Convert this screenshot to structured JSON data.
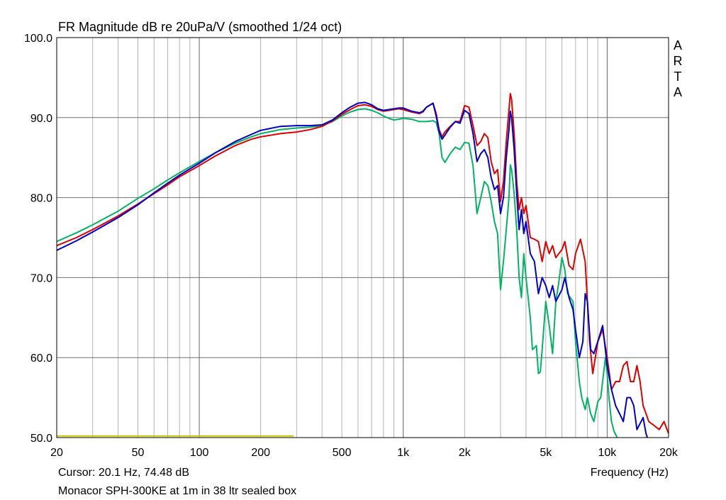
{
  "chart_data": {
    "type": "line",
    "title": "FR Magnitude dB re 20uPa/V (smoothed 1/24 oct)",
    "xlabel": "Frequency (Hz)",
    "ylabel": "",
    "x_scale": "log",
    "xlim": [
      20,
      20000
    ],
    "ylim": [
      50,
      100
    ],
    "grid": true,
    "y_ticks": [
      "100.0",
      "90.0",
      "80.0",
      "70.0",
      "60.0",
      "50.0"
    ],
    "x_ticks": [
      {
        "value": 20,
        "label": "20"
      },
      {
        "value": 50,
        "label": "50"
      },
      {
        "value": 100,
        "label": "100"
      },
      {
        "value": 200,
        "label": "200"
      },
      {
        "value": 500,
        "label": "500"
      },
      {
        "value": 1000,
        "label": "1k"
      },
      {
        "value": 2000,
        "label": "2k"
      },
      {
        "value": 5000,
        "label": "5k"
      },
      {
        "value": 10000,
        "label": "10k"
      },
      {
        "value": 20000,
        "label": "20k"
      }
    ],
    "side_label": [
      "A",
      "R",
      "T",
      "A"
    ],
    "cursor_text": "Cursor: 20.1 Hz, 74.48 dB",
    "caption": "Monacor SPH-300KE at 1m in 38 ltr sealed box",
    "reference_line": {
      "color": "#c8c800",
      "x": [
        20,
        290
      ],
      "y": 50.2
    },
    "series": [
      {
        "color": "#00b464",
        "points": [
          [
            20,
            74.5
          ],
          [
            25,
            75.6
          ],
          [
            30,
            76.6
          ],
          [
            40,
            78.3
          ],
          [
            50,
            79.9
          ],
          [
            60,
            81.1
          ],
          [
            70,
            82.2
          ],
          [
            80,
            83.1
          ],
          [
            100,
            84.5
          ],
          [
            120,
            85.6
          ],
          [
            150,
            86.8
          ],
          [
            180,
            87.6
          ],
          [
            200,
            88.0
          ],
          [
            250,
            88.5
          ],
          [
            300,
            88.7
          ],
          [
            350,
            88.8
          ],
          [
            400,
            89.0
          ],
          [
            450,
            89.5
          ],
          [
            500,
            90.2
          ],
          [
            550,
            90.7
          ],
          [
            600,
            91.0
          ],
          [
            650,
            91.1
          ],
          [
            700,
            90.9
          ],
          [
            750,
            90.6
          ],
          [
            800,
            90.2
          ],
          [
            850,
            89.9
          ],
          [
            900,
            89.7
          ],
          [
            950,
            89.8
          ],
          [
            1000,
            89.9
          ],
          [
            1100,
            89.8
          ],
          [
            1200,
            89.5
          ],
          [
            1300,
            89.5
          ],
          [
            1400,
            89.6
          ],
          [
            1450,
            89.4
          ],
          [
            1500,
            88.0
          ],
          [
            1550,
            85.0
          ],
          [
            1600,
            84.4
          ],
          [
            1700,
            85.5
          ],
          [
            1800,
            86.3
          ],
          [
            1900,
            86.0
          ],
          [
            2000,
            86.9
          ],
          [
            2100,
            86.8
          ],
          [
            2200,
            84.0
          ],
          [
            2300,
            78.0
          ],
          [
            2400,
            80.0
          ],
          [
            2500,
            82.0
          ],
          [
            2600,
            81.5
          ],
          [
            2700,
            79.5
          ],
          [
            2800,
            77.0
          ],
          [
            2900,
            75.5
          ],
          [
            3000,
            68.5
          ],
          [
            3100,
            72.0
          ],
          [
            3200,
            76.0
          ],
          [
            3300,
            80.0
          ],
          [
            3350,
            84.1
          ],
          [
            3400,
            83.5
          ],
          [
            3500,
            80.5
          ],
          [
            3600,
            76.0
          ],
          [
            3700,
            70.0
          ],
          [
            3800,
            67.5
          ],
          [
            3900,
            73.0
          ],
          [
            4000,
            70.0
          ],
          [
            4200,
            65.0
          ],
          [
            4300,
            61.0
          ],
          [
            4500,
            61.5
          ],
          [
            4600,
            58.0
          ],
          [
            4700,
            58.2
          ],
          [
            4800,
            61.0
          ],
          [
            5000,
            67.0
          ],
          [
            5200,
            64.0
          ],
          [
            5400,
            60.5
          ],
          [
            5600,
            67.0
          ],
          [
            5800,
            69.5
          ],
          [
            6000,
            72.5
          ],
          [
            6200,
            71.0
          ],
          [
            6400,
            68.0
          ],
          [
            6800,
            67.0
          ],
          [
            7000,
            62.0
          ],
          [
            7300,
            57.0
          ],
          [
            7500,
            55.0
          ],
          [
            7800,
            53.5
          ],
          [
            8000,
            55.0
          ],
          [
            8300,
            53.0
          ],
          [
            8600,
            52.0
          ],
          [
            9000,
            54.5
          ],
          [
            9300,
            55.0
          ],
          [
            9600,
            58.0
          ],
          [
            9800,
            60.0
          ],
          [
            10000,
            58.0
          ],
          [
            10200,
            55.0
          ],
          [
            10500,
            52.0
          ],
          [
            10800,
            50.8
          ],
          [
            11200,
            50.0
          ],
          [
            12000,
            49.5
          ],
          [
            14000,
            49.8
          ],
          [
            15500,
            50.0
          ]
        ]
      },
      {
        "color": "#e00000",
        "points": [
          [
            20,
            74.0
          ],
          [
            25,
            75.0
          ],
          [
            30,
            76.0
          ],
          [
            40,
            77.7
          ],
          [
            50,
            79.2
          ],
          [
            60,
            80.5
          ],
          [
            70,
            81.6
          ],
          [
            80,
            82.6
          ],
          [
            100,
            84.0
          ],
          [
            120,
            85.2
          ],
          [
            150,
            86.5
          ],
          [
            180,
            87.3
          ],
          [
            200,
            87.6
          ],
          [
            250,
            88.0
          ],
          [
            300,
            88.2
          ],
          [
            350,
            88.5
          ],
          [
            400,
            88.9
          ],
          [
            450,
            89.6
          ],
          [
            500,
            90.4
          ],
          [
            550,
            91.0
          ],
          [
            600,
            91.5
          ],
          [
            650,
            91.6
          ],
          [
            700,
            91.4
          ],
          [
            750,
            91.0
          ],
          [
            800,
            90.8
          ],
          [
            850,
            90.9
          ],
          [
            900,
            91.0
          ],
          [
            950,
            91.1
          ],
          [
            1000,
            91.0
          ],
          [
            1100,
            90.7
          ],
          [
            1200,
            90.5
          ],
          [
            1250,
            90.7
          ],
          [
            1300,
            91.3
          ],
          [
            1400,
            91.8
          ],
          [
            1450,
            90.5
          ],
          [
            1500,
            88.5
          ],
          [
            1550,
            87.6
          ],
          [
            1600,
            88.2
          ],
          [
            1700,
            88.9
          ],
          [
            1800,
            89.5
          ],
          [
            1900,
            89.5
          ],
          [
            2000,
            91.5
          ],
          [
            2100,
            91.3
          ],
          [
            2200,
            89.0
          ],
          [
            2300,
            86.5
          ],
          [
            2400,
            87.0
          ],
          [
            2500,
            88.0
          ],
          [
            2600,
            87.5
          ],
          [
            2700,
            84.5
          ],
          [
            2800,
            83.0
          ],
          [
            2900,
            83.5
          ],
          [
            3000,
            79.5
          ],
          [
            3100,
            82.0
          ],
          [
            3200,
            87.0
          ],
          [
            3300,
            91.0
          ],
          [
            3350,
            93.0
          ],
          [
            3400,
            92.3
          ],
          [
            3500,
            88.0
          ],
          [
            3600,
            82.0
          ],
          [
            3700,
            78.5
          ],
          [
            3800,
            80.0
          ],
          [
            3900,
            78.0
          ],
          [
            4000,
            79.0
          ],
          [
            4200,
            75.0
          ],
          [
            4400,
            74.8
          ],
          [
            4600,
            74.5
          ],
          [
            4800,
            72.0
          ],
          [
            5000,
            74.5
          ],
          [
            5200,
            73.0
          ],
          [
            5400,
            74.0
          ],
          [
            5600,
            72.5
          ],
          [
            6000,
            73.5
          ],
          [
            6200,
            74.5
          ],
          [
            6500,
            71.5
          ],
          [
            6800,
            71.0
          ],
          [
            7000,
            73.0
          ],
          [
            7400,
            74.8
          ],
          [
            7800,
            72.0
          ],
          [
            8200,
            62.0
          ],
          [
            8500,
            58.0
          ],
          [
            9000,
            62.0
          ],
          [
            9500,
            63.5
          ],
          [
            10000,
            60.0
          ],
          [
            10500,
            56.0
          ],
          [
            11000,
            57.0
          ],
          [
            11500,
            57.0
          ],
          [
            12000,
            59.0
          ],
          [
            12500,
            59.5
          ],
          [
            13000,
            57.0
          ],
          [
            13500,
            57.0
          ],
          [
            14000,
            59.0
          ],
          [
            14500,
            57.0
          ],
          [
            15000,
            54.0
          ],
          [
            15500,
            53.0
          ],
          [
            16000,
            52.0
          ],
          [
            17000,
            51.5
          ],
          [
            18000,
            51.0
          ],
          [
            19000,
            52.0
          ],
          [
            20000,
            50.5
          ]
        ]
      },
      {
        "color": "#0000cc",
        "points": [
          [
            20,
            73.4
          ],
          [
            25,
            74.6
          ],
          [
            30,
            75.7
          ],
          [
            40,
            77.5
          ],
          [
            50,
            79.1
          ],
          [
            60,
            80.6
          ],
          [
            70,
            81.8
          ],
          [
            80,
            82.8
          ],
          [
            100,
            84.3
          ],
          [
            120,
            85.6
          ],
          [
            150,
            87.0
          ],
          [
            180,
            87.9
          ],
          [
            200,
            88.4
          ],
          [
            250,
            88.9
          ],
          [
            300,
            89.0
          ],
          [
            350,
            89.0
          ],
          [
            400,
            89.1
          ],
          [
            450,
            89.7
          ],
          [
            500,
            90.6
          ],
          [
            550,
            91.3
          ],
          [
            600,
            91.8
          ],
          [
            650,
            91.9
          ],
          [
            700,
            91.6
          ],
          [
            750,
            91.1
          ],
          [
            800,
            90.9
          ],
          [
            850,
            91.0
          ],
          [
            900,
            91.1
          ],
          [
            950,
            91.2
          ],
          [
            1000,
            91.2
          ],
          [
            1100,
            90.8
          ],
          [
            1200,
            90.6
          ],
          [
            1250,
            90.8
          ],
          [
            1300,
            91.3
          ],
          [
            1400,
            91.8
          ],
          [
            1450,
            90.2
          ],
          [
            1500,
            88.2
          ],
          [
            1550,
            87.3
          ],
          [
            1600,
            87.8
          ],
          [
            1700,
            88.8
          ],
          [
            1800,
            89.5
          ],
          [
            1900,
            89.3
          ],
          [
            2000,
            90.9
          ],
          [
            2100,
            90.5
          ],
          [
            2200,
            88.0
          ],
          [
            2300,
            84.5
          ],
          [
            2400,
            85.5
          ],
          [
            2500,
            86.0
          ],
          [
            2600,
            85.0
          ],
          [
            2700,
            82.5
          ],
          [
            2800,
            81.0
          ],
          [
            2900,
            81.5
          ],
          [
            3000,
            78.0
          ],
          [
            3100,
            80.0
          ],
          [
            3200,
            85.0
          ],
          [
            3300,
            88.5
          ],
          [
            3350,
            90.8
          ],
          [
            3400,
            90.0
          ],
          [
            3500,
            86.0
          ],
          [
            3600,
            80.5
          ],
          [
            3700,
            76.0
          ],
          [
            3800,
            78.5
          ],
          [
            3900,
            75.5
          ],
          [
            4000,
            77.0
          ],
          [
            4200,
            73.0
          ],
          [
            4400,
            72.0
          ],
          [
            4600,
            68.0
          ],
          [
            4800,
            70.0
          ],
          [
            5000,
            69.0
          ],
          [
            5200,
            67.5
          ],
          [
            5400,
            69.0
          ],
          [
            5600,
            67.0
          ],
          [
            6000,
            68.5
          ],
          [
            6200,
            70.0
          ],
          [
            6500,
            67.5
          ],
          [
            6800,
            66.0
          ],
          [
            7000,
            63.5
          ],
          [
            7300,
            60.0
          ],
          [
            7600,
            62.0
          ],
          [
            7800,
            68.0
          ],
          [
            8000,
            67.0
          ],
          [
            8300,
            61.0
          ],
          [
            8600,
            60.5
          ],
          [
            9000,
            62.0
          ],
          [
            9500,
            64.0
          ],
          [
            10000,
            59.0
          ],
          [
            10500,
            56.0
          ],
          [
            11000,
            54.0
          ],
          [
            11500,
            53.0
          ],
          [
            12000,
            52.0
          ],
          [
            12500,
            55.0
          ],
          [
            13000,
            55.0
          ],
          [
            13500,
            54.0
          ],
          [
            14000,
            51.0
          ],
          [
            15000,
            52.5
          ],
          [
            15500,
            50.5
          ],
          [
            16000,
            49.5
          ]
        ]
      }
    ]
  }
}
